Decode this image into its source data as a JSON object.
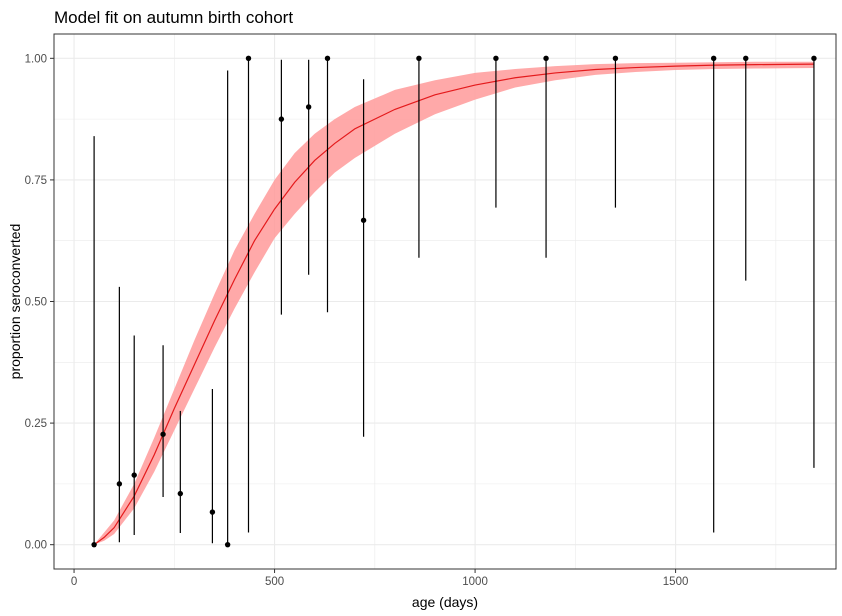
{
  "chart_data": {
    "type": "scatter",
    "title": "Model fit on autumn birth cohort",
    "xlabel": "age (days)",
    "ylabel": "proportion seroconverted",
    "xlim": [
      -50,
      1900
    ],
    "ylim": [
      -0.05,
      1.05
    ],
    "x_ticks": [
      0,
      500,
      1000,
      1500
    ],
    "x_tick_labels": [
      "0",
      "500",
      "1000",
      "1500"
    ],
    "y_ticks": [
      0,
      0.25,
      0.5,
      0.75,
      1
    ],
    "y_tick_labels": [
      "0.00",
      "0.25",
      "0.50",
      "0.75",
      "1.00"
    ],
    "grid": true,
    "legend": "none",
    "colors": {
      "fit_line": "#e41a1c",
      "fit_ribbon": "#ff9a9a",
      "points": "#000000",
      "grid": "#ebebeb",
      "panel_border": "#333333"
    },
    "observed": [
      {
        "x": 50,
        "y": 0.0,
        "lower": 0.0,
        "upper": 0.84
      },
      {
        "x": 113,
        "y": 0.125,
        "lower": 0.005,
        "upper": 0.53
      },
      {
        "x": 150,
        "y": 0.143,
        "lower": 0.02,
        "upper": 0.43
      },
      {
        "x": 222,
        "y": 0.227,
        "lower": 0.098,
        "upper": 0.41
      },
      {
        "x": 265,
        "y": 0.105,
        "lower": 0.024,
        "upper": 0.275
      },
      {
        "x": 345,
        "y": 0.067,
        "lower": 0.003,
        "upper": 0.32
      },
      {
        "x": 383,
        "y": 0.0,
        "lower": 0.0,
        "upper": 0.975
      },
      {
        "x": 435,
        "y": 1.0,
        "lower": 0.025,
        "upper": 1.0
      },
      {
        "x": 517,
        "y": 0.875,
        "lower": 0.473,
        "upper": 0.997
      },
      {
        "x": 585,
        "y": 0.9,
        "lower": 0.555,
        "upper": 0.997
      },
      {
        "x": 632,
        "y": 1.0,
        "lower": 0.478,
        "upper": 1.0
      },
      {
        "x": 722,
        "y": 0.667,
        "lower": 0.222,
        "upper": 0.957
      },
      {
        "x": 860,
        "y": 1.0,
        "lower": 0.59,
        "upper": 1.0
      },
      {
        "x": 1052,
        "y": 1.0,
        "lower": 0.693,
        "upper": 1.0
      },
      {
        "x": 1177,
        "y": 1.0,
        "lower": 0.59,
        "upper": 1.0
      },
      {
        "x": 1350,
        "y": 1.0,
        "lower": 0.693,
        "upper": 1.0
      },
      {
        "x": 1595,
        "y": 1.0,
        "lower": 0.025,
        "upper": 1.0
      },
      {
        "x": 1675,
        "y": 1.0,
        "lower": 0.543,
        "upper": 1.0
      },
      {
        "x": 1845,
        "y": 1.0,
        "lower": 0.158,
        "upper": 1.0
      }
    ],
    "fit": {
      "x": [
        50,
        75,
        100,
        150,
        200,
        250,
        300,
        350,
        400,
        450,
        500,
        550,
        600,
        650,
        700,
        800,
        900,
        1000,
        1100,
        1200,
        1300,
        1400,
        1500,
        1600,
        1700,
        1845
      ],
      "y": [
        0.0,
        0.015,
        0.035,
        0.1,
        0.185,
        0.28,
        0.37,
        0.46,
        0.545,
        0.625,
        0.69,
        0.745,
        0.79,
        0.825,
        0.855,
        0.895,
        0.925,
        0.945,
        0.96,
        0.97,
        0.977,
        0.981,
        0.984,
        0.986,
        0.987,
        0.988
      ],
      "lower": [
        0.0,
        0.008,
        0.022,
        0.075,
        0.15,
        0.235,
        0.32,
        0.405,
        0.485,
        0.56,
        0.63,
        0.68,
        0.725,
        0.765,
        0.795,
        0.845,
        0.885,
        0.915,
        0.94,
        0.955,
        0.966,
        0.972,
        0.976,
        0.978,
        0.979,
        0.98
      ],
      "upper": [
        0.0,
        0.025,
        0.05,
        0.125,
        0.22,
        0.32,
        0.42,
        0.515,
        0.605,
        0.68,
        0.75,
        0.805,
        0.845,
        0.875,
        0.9,
        0.935,
        0.955,
        0.97,
        0.978,
        0.984,
        0.988,
        0.99,
        0.991,
        0.992,
        0.993,
        0.993
      ]
    }
  }
}
